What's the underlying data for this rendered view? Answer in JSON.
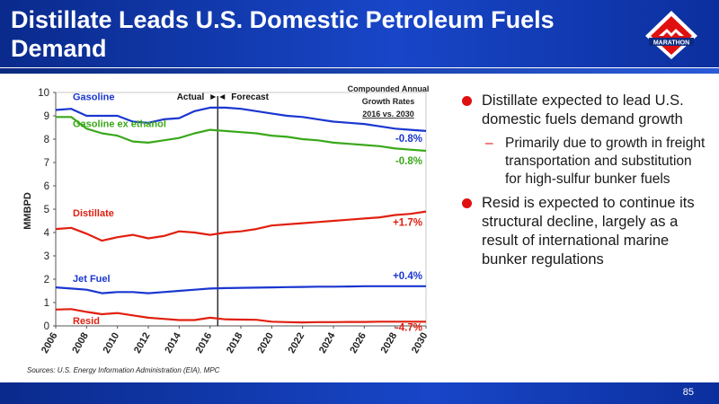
{
  "slide": {
    "title": "Distillate Leads U.S. Domestic Petroleum Fuels Demand",
    "logo_text": "MARATHON",
    "source": "Sources:  U.S. Energy Information Administration (EIA), MPC",
    "page_number": "85",
    "colors": {
      "header": "#1846c8",
      "gasoline": "#1a36d0",
      "gasoline_ex_ethanol": "#3aa81a",
      "distillate": "#e02010",
      "jet_fuel": "#1a36d0",
      "resid": "#e02010",
      "bullet": "#e01010"
    }
  },
  "bullets": [
    {
      "text": "Distillate expected to lead U.S. domestic fuels demand growth",
      "sub": "Primarily due to growth in freight transportation and substitution for high-sulfur bunker fuels"
    },
    {
      "text": "Resid is expected to continue its structural decline, largely as a result of international marine bunker regulations"
    }
  ],
  "chart_data": {
    "type": "line",
    "ylabel": "MMBPD",
    "ylim": [
      0,
      10
    ],
    "xlim": [
      2006,
      2030
    ],
    "yticks": [
      "0",
      "1",
      "2",
      "3",
      "4",
      "5",
      "6",
      "7",
      "8",
      "9",
      "10"
    ],
    "xticks": [
      "2006",
      "2008",
      "2010",
      "2012",
      "2014",
      "2016",
      "2018",
      "2020",
      "2022",
      "2024",
      "2026",
      "2028",
      "2030"
    ],
    "grid": false,
    "divider": {
      "x": 2016.5,
      "left_label": "Actual",
      "right_label": "Forecast"
    },
    "cagr_header": [
      "Compounded Annual",
      "Growth Rates",
      "2016 vs. 2030"
    ],
    "x": [
      2006,
      2007,
      2008,
      2009,
      2010,
      2011,
      2012,
      2013,
      2014,
      2015,
      2016,
      2017,
      2018,
      2019,
      2020,
      2021,
      2022,
      2023,
      2024,
      2025,
      2026,
      2027,
      2028,
      2029,
      2030
    ],
    "series": [
      {
        "name": "Gasoline",
        "color": "#1a36d0",
        "cagr": "-0.8%",
        "values": [
          9.25,
          9.3,
          9.0,
          9.0,
          9.0,
          8.75,
          8.7,
          8.85,
          8.9,
          9.2,
          9.35,
          9.35,
          9.3,
          9.2,
          9.1,
          9.0,
          8.95,
          8.85,
          8.75,
          8.7,
          8.65,
          8.55,
          8.45,
          8.4,
          8.35
        ]
      },
      {
        "name": "Gasoline ex ethanol",
        "color": "#3aa81a",
        "cagr": "-0.8%",
        "values": [
          8.95,
          8.95,
          8.45,
          8.25,
          8.15,
          7.9,
          7.85,
          7.95,
          8.05,
          8.25,
          8.4,
          8.35,
          8.3,
          8.25,
          8.15,
          8.1,
          8.0,
          7.95,
          7.85,
          7.8,
          7.75,
          7.7,
          7.6,
          7.55,
          7.5
        ]
      },
      {
        "name": "Distillate",
        "color": "#e02010",
        "cagr": "+1.7%",
        "values": [
          4.15,
          4.2,
          3.95,
          3.65,
          3.8,
          3.9,
          3.75,
          3.85,
          4.05,
          4.0,
          3.9,
          4.0,
          4.05,
          4.15,
          4.3,
          4.35,
          4.4,
          4.45,
          4.5,
          4.55,
          4.6,
          4.65,
          4.75,
          4.8,
          4.9
        ]
      },
      {
        "name": "Jet Fuel",
        "color": "#1a36d0",
        "cagr": "+0.4%",
        "values": [
          1.65,
          1.6,
          1.55,
          1.4,
          1.45,
          1.45,
          1.4,
          1.45,
          1.5,
          1.55,
          1.6,
          1.62,
          1.63,
          1.64,
          1.65,
          1.66,
          1.67,
          1.68,
          1.68,
          1.69,
          1.7,
          1.7,
          1.7,
          1.7,
          1.7
        ]
      },
      {
        "name": "Resid",
        "color": "#e02010",
        "cagr": "-4.7%",
        "values": [
          0.7,
          0.72,
          0.6,
          0.5,
          0.55,
          0.45,
          0.35,
          0.3,
          0.25,
          0.25,
          0.35,
          0.28,
          0.27,
          0.26,
          0.18,
          0.16,
          0.15,
          0.16,
          0.16,
          0.17,
          0.17,
          0.18,
          0.18,
          0.18,
          0.18
        ]
      }
    ]
  }
}
